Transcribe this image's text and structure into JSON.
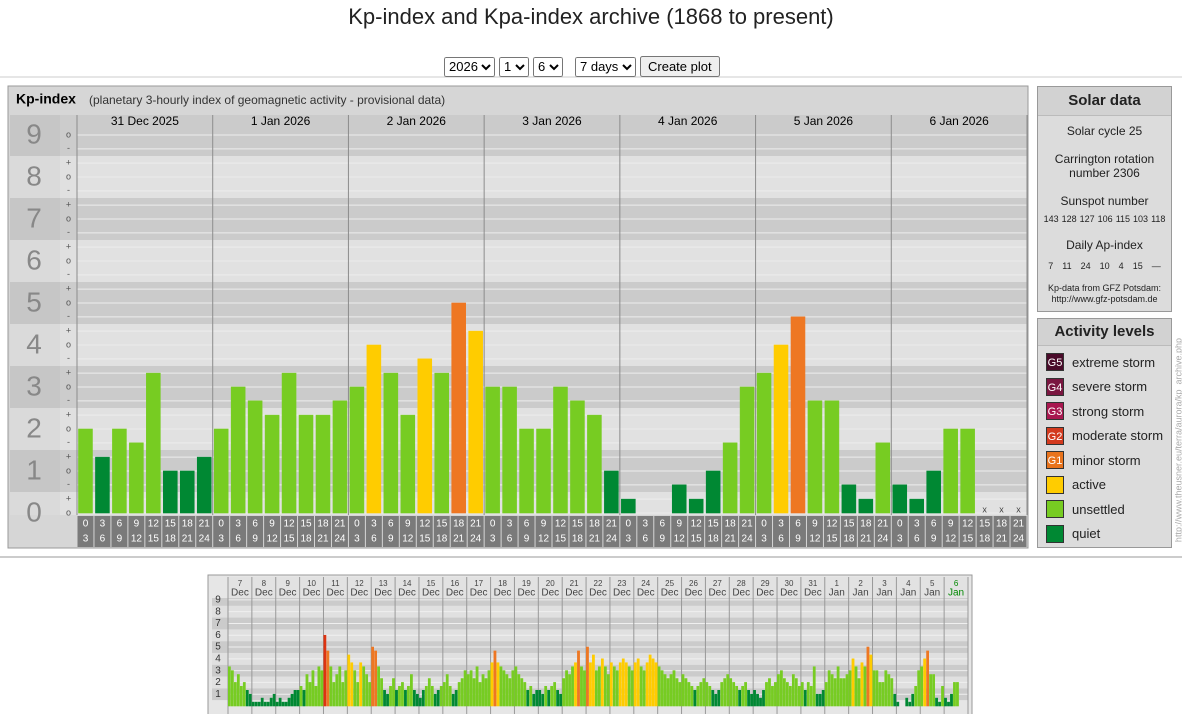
{
  "page_title": "Kp-index and Kpa-index archive (1868 to present)",
  "controls": {
    "year": "2026",
    "month": "1",
    "day": "6",
    "span": "7 days",
    "button": "Create plot"
  },
  "chart_data": [
    {
      "type": "bar",
      "title": "Kp-index",
      "subtitle": "(planetary 3-hourly index of geomagnetic activity - provisional data)",
      "categories": [
        "31 Dec 2025",
        "1 Jan 2026",
        "2 Jan 2026",
        "3 Jan 2026",
        "4 Jan 2026",
        "5 Jan 2026",
        "6 Jan 2026"
      ],
      "hour_labels": [
        [
          0,
          3
        ],
        [
          3,
          6
        ],
        [
          6,
          9
        ],
        [
          9,
          12
        ],
        [
          12,
          15
        ],
        [
          15,
          18
        ],
        [
          18,
          21
        ],
        [
          21,
          24
        ]
      ],
      "values": [
        [
          2,
          1.33,
          2,
          1.67,
          3.33,
          1,
          1,
          1.33
        ],
        [
          2,
          3,
          2.67,
          2.33,
          3.33,
          2.33,
          2.33,
          2.67
        ],
        [
          3,
          4,
          3.33,
          2.33,
          3.67,
          3.33,
          5,
          4.33
        ],
        [
          3,
          3,
          2,
          2,
          3,
          2.67,
          2.33,
          1
        ],
        [
          0.33,
          0,
          0,
          0.67,
          0.33,
          1,
          1.67,
          3
        ],
        [
          3.33,
          4,
          4.67,
          2.67,
          2.67,
          0.67,
          0.33,
          1.67
        ],
        [
          0.67,
          0.33,
          1,
          2,
          2,
          null,
          null,
          null
        ]
      ],
      "value_labels": [
        [
          null,
          null,
          null,
          null,
          null,
          null,
          null,
          null
        ],
        [
          null,
          null,
          null,
          null,
          null,
          null,
          null,
          null
        ],
        [
          null,
          null,
          null,
          null,
          null,
          null,
          null,
          null
        ],
        [
          null,
          null,
          null,
          null,
          null,
          null,
          null,
          null
        ],
        [
          null,
          null,
          null,
          null,
          null,
          null,
          null,
          null
        ],
        [
          null,
          null,
          null,
          null,
          null,
          null,
          null,
          null
        ],
        [
          null,
          null,
          null,
          null,
          null,
          "x",
          "x",
          "x"
        ]
      ],
      "colors": [
        [
          "#7c2",
          "#083",
          "#7c2",
          "#7c2",
          "#7c2",
          "#083",
          "#083",
          "#083"
        ],
        [
          "#7c2",
          "#7c2",
          "#7c2",
          "#7c2",
          "#7c2",
          "#7c2",
          "#7c2",
          "#7c2"
        ],
        [
          "#7c2",
          "#fc0",
          "#7c2",
          "#7c2",
          "#fc0",
          "#7c2",
          "#e72",
          "#fc0"
        ],
        [
          "#7c2",
          "#7c2",
          "#7c2",
          "#7c2",
          "#7c2",
          "#7c2",
          "#7c2",
          "#083"
        ],
        [
          "#083",
          "#083",
          "#083",
          "#083",
          "#083",
          "#083",
          "#7c2",
          "#7c2"
        ],
        [
          "#7c2",
          "#fc0",
          "#e72",
          "#7c2",
          "#7c2",
          "#083",
          "#083",
          "#7c2"
        ],
        [
          "#083",
          "#083",
          "#083",
          "#7c2",
          "#7c2",
          null,
          null,
          null
        ]
      ],
      "ylim": [
        0,
        9.5
      ],
      "yticks": [
        0,
        1,
        2,
        3,
        4,
        5,
        6,
        7,
        8,
        9
      ],
      "yticks_minor": [
        {
          "value": 0,
          "label": "o"
        },
        {
          "value": 0.33,
          "label": "+"
        },
        {
          "value": 0.67,
          "label": "-"
        },
        {
          "value": 1,
          "label": "o"
        },
        {
          "value": 1.33,
          "label": "+"
        },
        {
          "value": 1.67,
          "label": "-"
        },
        {
          "value": 2,
          "label": "o"
        },
        {
          "value": 2.33,
          "label": "+"
        },
        {
          "value": 2.67,
          "label": "-"
        },
        {
          "value": 3,
          "label": "o"
        },
        {
          "value": 3.33,
          "label": "+"
        },
        {
          "value": 3.67,
          "label": "-"
        },
        {
          "value": 4,
          "label": "o"
        },
        {
          "value": 4.33,
          "label": "+"
        },
        {
          "value": 4.67,
          "label": "-"
        },
        {
          "value": 5,
          "label": "o"
        },
        {
          "value": 5.33,
          "label": "+"
        },
        {
          "value": 5.67,
          "label": "-"
        },
        {
          "value": 6,
          "label": "o"
        },
        {
          "value": 6.33,
          "label": "+"
        },
        {
          "value": 6.67,
          "label": "-"
        },
        {
          "value": 7,
          "label": "o"
        },
        {
          "value": 7.33,
          "label": "+"
        },
        {
          "value": 7.67,
          "label": "-"
        },
        {
          "value": 8,
          "label": "o"
        },
        {
          "value": 8.33,
          "label": "+"
        },
        {
          "value": 8.67,
          "label": "-"
        },
        {
          "value": 9,
          "label": "o"
        }
      ],
      "grid": true
    },
    {
      "type": "bar",
      "days": [
        "7",
        "8",
        "9",
        "10",
        "11",
        "12",
        "13",
        "14",
        "15",
        "16",
        "17",
        "18",
        "19",
        "20",
        "21",
        "22",
        "23",
        "24",
        "25",
        "26",
        "27",
        "28",
        "29",
        "30",
        "31",
        "1",
        "2",
        "3",
        "4",
        "5",
        "6"
      ],
      "months": [
        "Dec",
        "Dec",
        "Dec",
        "Dec",
        "Dec",
        "Dec",
        "Dec",
        "Dec",
        "Dec",
        "Dec",
        "Dec",
        "Dec",
        "Dec",
        "Dec",
        "Dec",
        "Dec",
        "Dec",
        "Dec",
        "Dec",
        "Dec",
        "Dec",
        "Dec",
        "Dec",
        "Dec",
        "Dec",
        "Jan",
        "Jan",
        "Jan",
        "Jan",
        "Jan",
        "Jan"
      ],
      "current_day_color": "#080",
      "values": [
        [
          3.33,
          3,
          2,
          2.67,
          1.67,
          2,
          1.33,
          1
        ],
        [
          0.33,
          0.33,
          0.33,
          0.67,
          0.33,
          0.33,
          0.67,
          1
        ],
        [
          0.33,
          0.67,
          0.33,
          0.33,
          0.67,
          1,
          1.33,
          1.33
        ],
        [
          1.67,
          1.33,
          2.67,
          2,
          3,
          1.67,
          3.33,
          3
        ],
        [
          6,
          4.67,
          3.33,
          2,
          2.67,
          3.33,
          2,
          3
        ],
        [
          4.33,
          3.67,
          3,
          2,
          3.67,
          3.33,
          2.67,
          2
        ],
        [
          5,
          4.67,
          3.33,
          2.33,
          1.33,
          1,
          1.67,
          2.33
        ],
        [
          1.33,
          1.67,
          2,
          1.33,
          1.67,
          2.67,
          1.33,
          1
        ],
        [
          0.67,
          1.33,
          1.67,
          2.33,
          1.67,
          1,
          1.33,
          1.67
        ],
        [
          2,
          2.67,
          1.67,
          1,
          1.33,
          2,
          2.33,
          3
        ],
        [
          2.67,
          3,
          2.33,
          3.33,
          2,
          2.67,
          2.33,
          3
        ],
        [
          3.67,
          4.67,
          3.67,
          3.33,
          3,
          2.67,
          2.33,
          3
        ],
        [
          3.33,
          2.67,
          2.33,
          2,
          1.33,
          1.67,
          1,
          1.33
        ],
        [
          1.33,
          1,
          1.67,
          1.33,
          1.67,
          2,
          1.33,
          1
        ],
        [
          2.33,
          3,
          2.67,
          3.33,
          3.67,
          4.67,
          3.33,
          3
        ],
        [
          5,
          3.67,
          4.33,
          3,
          3.33,
          4,
          3.33,
          2.67
        ],
        [
          3.67,
          3.33,
          3,
          3.67,
          4,
          3.67,
          3.33,
          3
        ],
        [
          3.67,
          4,
          3.33,
          3,
          3.67,
          4.33,
          4,
          3.67
        ],
        [
          3.33,
          3,
          2.67,
          2.33,
          2.67,
          3,
          2.33,
          2
        ],
        [
          2.67,
          2.33,
          2,
          1.67,
          1.33,
          1.67,
          2,
          2.33
        ],
        [
          2,
          1.67,
          1.33,
          1,
          1.33,
          2,
          2.33,
          2.67
        ],
        [
          2.33,
          2,
          1.67,
          1.33,
          1.67,
          2,
          1.33,
          1
        ],
        [
          1.33,
          1,
          0.67,
          1.33,
          2,
          2.33,
          1.67,
          2
        ],
        [
          2.67,
          3,
          2.33,
          2,
          1.67,
          2.67,
          2.33,
          1.67
        ],
        [
          2,
          1.33,
          2,
          1.67,
          3.33,
          1,
          1,
          1.33
        ],
        [
          2,
          3,
          2.67,
          2.33,
          3.33,
          2.33,
          2.33,
          2.67
        ],
        [
          3,
          4,
          3.33,
          2.33,
          3.67,
          3.33,
          5,
          4.33
        ],
        [
          3,
          3,
          2,
          2,
          3,
          2.67,
          2.33,
          1
        ],
        [
          0.33,
          0,
          0,
          0.67,
          0.33,
          1,
          1.67,
          3
        ],
        [
          3.33,
          4,
          4.67,
          2.67,
          2.67,
          0.67,
          0.33,
          1.67
        ],
        [
          0.67,
          0.33,
          1,
          2,
          2,
          null,
          null,
          null
        ]
      ],
      "colors": [
        [
          "#7c2",
          "#7c2",
          "#7c2",
          "#7c2",
          "#7c2",
          "#7c2",
          "#083",
          "#083"
        ],
        [
          "#083",
          "#083",
          "#083",
          "#083",
          "#083",
          "#083",
          "#083",
          "#083"
        ],
        [
          "#083",
          "#083",
          "#083",
          "#083",
          "#083",
          "#083",
          "#083",
          "#083"
        ],
        [
          "#7c2",
          "#083",
          "#7c2",
          "#7c2",
          "#7c2",
          "#7c2",
          "#7c2",
          "#7c2"
        ],
        [
          "#d31",
          "#e72",
          "#7c2",
          "#7c2",
          "#7c2",
          "#7c2",
          "#7c2",
          "#7c2"
        ],
        [
          "#fc0",
          "#fc0",
          "#7c2",
          "#7c2",
          "#fc0",
          "#7c2",
          "#7c2",
          "#7c2"
        ],
        [
          "#e72",
          "#e72",
          "#7c2",
          "#7c2",
          "#083",
          "#083",
          "#7c2",
          "#7c2"
        ],
        [
          "#083",
          "#7c2",
          "#7c2",
          "#083",
          "#7c2",
          "#7c2",
          "#083",
          "#083"
        ],
        [
          "#083",
          "#083",
          "#7c2",
          "#7c2",
          "#7c2",
          "#083",
          "#083",
          "#7c2"
        ],
        [
          "#7c2",
          "#7c2",
          "#7c2",
          "#083",
          "#083",
          "#7c2",
          "#7c2",
          "#7c2"
        ],
        [
          "#7c2",
          "#7c2",
          "#7c2",
          "#7c2",
          "#7c2",
          "#7c2",
          "#7c2",
          "#7c2"
        ],
        [
          "#fc0",
          "#e72",
          "#fc0",
          "#7c2",
          "#7c2",
          "#7c2",
          "#7c2",
          "#7c2"
        ],
        [
          "#7c2",
          "#7c2",
          "#7c2",
          "#7c2",
          "#083",
          "#7c2",
          "#083",
          "#083"
        ],
        [
          "#083",
          "#083",
          "#7c2",
          "#083",
          "#7c2",
          "#7c2",
          "#083",
          "#083"
        ],
        [
          "#7c2",
          "#7c2",
          "#7c2",
          "#7c2",
          "#fc0",
          "#e72",
          "#7c2",
          "#7c2"
        ],
        [
          "#e72",
          "#fc0",
          "#fc0",
          "#7c2",
          "#7c2",
          "#fc0",
          "#7c2",
          "#7c2"
        ],
        [
          "#fc0",
          "#7c2",
          "#7c2",
          "#fc0",
          "#fc0",
          "#fc0",
          "#7c2",
          "#7c2"
        ],
        [
          "#fc0",
          "#fc0",
          "#7c2",
          "#7c2",
          "#fc0",
          "#fc0",
          "#fc0",
          "#fc0"
        ],
        [
          "#7c2",
          "#7c2",
          "#7c2",
          "#7c2",
          "#7c2",
          "#7c2",
          "#7c2",
          "#7c2"
        ],
        [
          "#7c2",
          "#7c2",
          "#7c2",
          "#7c2",
          "#083",
          "#7c2",
          "#7c2",
          "#7c2"
        ],
        [
          "#7c2",
          "#7c2",
          "#083",
          "#083",
          "#083",
          "#7c2",
          "#7c2",
          "#7c2"
        ],
        [
          "#7c2",
          "#7c2",
          "#7c2",
          "#083",
          "#7c2",
          "#7c2",
          "#083",
          "#083"
        ],
        [
          "#083",
          "#083",
          "#083",
          "#083",
          "#7c2",
          "#7c2",
          "#7c2",
          "#7c2"
        ],
        [
          "#7c2",
          "#7c2",
          "#7c2",
          "#7c2",
          "#7c2",
          "#7c2",
          "#7c2",
          "#7c2"
        ],
        [
          "#7c2",
          "#083",
          "#7c2",
          "#7c2",
          "#7c2",
          "#083",
          "#083",
          "#083"
        ],
        [
          "#7c2",
          "#7c2",
          "#7c2",
          "#7c2",
          "#7c2",
          "#7c2",
          "#7c2",
          "#7c2"
        ],
        [
          "#7c2",
          "#fc0",
          "#7c2",
          "#7c2",
          "#fc0",
          "#7c2",
          "#e72",
          "#fc0"
        ],
        [
          "#7c2",
          "#7c2",
          "#7c2",
          "#7c2",
          "#7c2",
          "#7c2",
          "#7c2",
          "#083"
        ],
        [
          "#083",
          "#083",
          "#083",
          "#083",
          "#083",
          "#083",
          "#7c2",
          "#7c2"
        ],
        [
          "#7c2",
          "#fc0",
          "#e72",
          "#7c2",
          "#7c2",
          "#083",
          "#083",
          "#7c2"
        ],
        [
          "#083",
          "#083",
          "#083",
          "#7c2",
          "#7c2",
          null,
          null,
          null
        ]
      ],
      "ylim": [
        0,
        9.5
      ],
      "yticks": [
        1,
        2,
        3,
        4,
        5,
        6,
        7,
        8,
        9
      ],
      "grid": true
    }
  ],
  "solar_data": {
    "title": "Solar data",
    "solar_cycle": "Solar cycle 25",
    "carrington": "Carrington rotation number 2306",
    "sunspot_title": "Sunspot number",
    "sunspot_values": [
      143,
      128,
      127,
      106,
      115,
      103,
      118
    ],
    "ap_title": "Daily Ap-index",
    "ap_values": [
      7,
      11,
      24,
      10,
      4,
      15,
      "—"
    ],
    "source": "Kp-data from GFZ Potsdam:",
    "source_url": "http://www.gfz-potsdam.de"
  },
  "activity_levels": {
    "title": "Activity levels",
    "items": [
      {
        "badge": "G5",
        "label": "extreme storm",
        "color": "#4a0b2a"
      },
      {
        "badge": "G4",
        "label": "severe storm",
        "color": "#7a1640"
      },
      {
        "badge": "G3",
        "label": "strong storm",
        "color": "#a8174f"
      },
      {
        "badge": "G2",
        "label": "moderate storm",
        "color": "#d33a1e"
      },
      {
        "badge": "G1",
        "label": "minor storm",
        "color": "#e8731c"
      },
      {
        "badge": null,
        "label": "active",
        "color": "#fc0"
      },
      {
        "badge": null,
        "label": "unsettled",
        "color": "#7c2"
      },
      {
        "badge": null,
        "label": "quiet",
        "color": "#083"
      }
    ]
  },
  "side_url": "http://www.theusner.eu/terra/aurora/kp_archive.php"
}
